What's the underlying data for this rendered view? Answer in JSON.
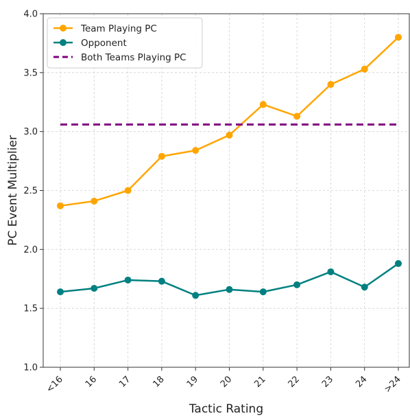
{
  "chart_data": {
    "type": "line",
    "xlabel": "Tactic Rating",
    "ylabel": "PC Event Multiplier",
    "categories": [
      "<16",
      "16",
      "17",
      "18",
      "19",
      "20",
      "21",
      "22",
      "23",
      "24",
      ">24"
    ],
    "ylim": [
      1.0,
      4.0
    ],
    "yticks": [
      "1.0",
      "1.5",
      "2.0",
      "2.5",
      "3.0",
      "3.5",
      "4.0"
    ],
    "grid": true,
    "legend_position": "top-left",
    "series": [
      {
        "name": "Team Playing PC",
        "color": "#FFA500",
        "style": "solid-markers",
        "values": [
          2.37,
          2.41,
          2.5,
          2.79,
          2.84,
          2.97,
          3.23,
          3.13,
          3.4,
          3.53,
          3.8
        ]
      },
      {
        "name": "Opponent",
        "color": "#008080",
        "style": "solid-markers",
        "values": [
          1.64,
          1.67,
          1.74,
          1.73,
          1.61,
          1.66,
          1.64,
          1.7,
          1.81,
          1.68,
          1.88
        ]
      },
      {
        "name": "Both Teams Playing PC",
        "color": "#800080",
        "style": "dashed",
        "values": [
          3.06,
          3.06,
          3.06,
          3.06,
          3.06,
          3.06,
          3.06,
          3.06,
          3.06,
          3.06,
          3.06
        ]
      }
    ]
  }
}
